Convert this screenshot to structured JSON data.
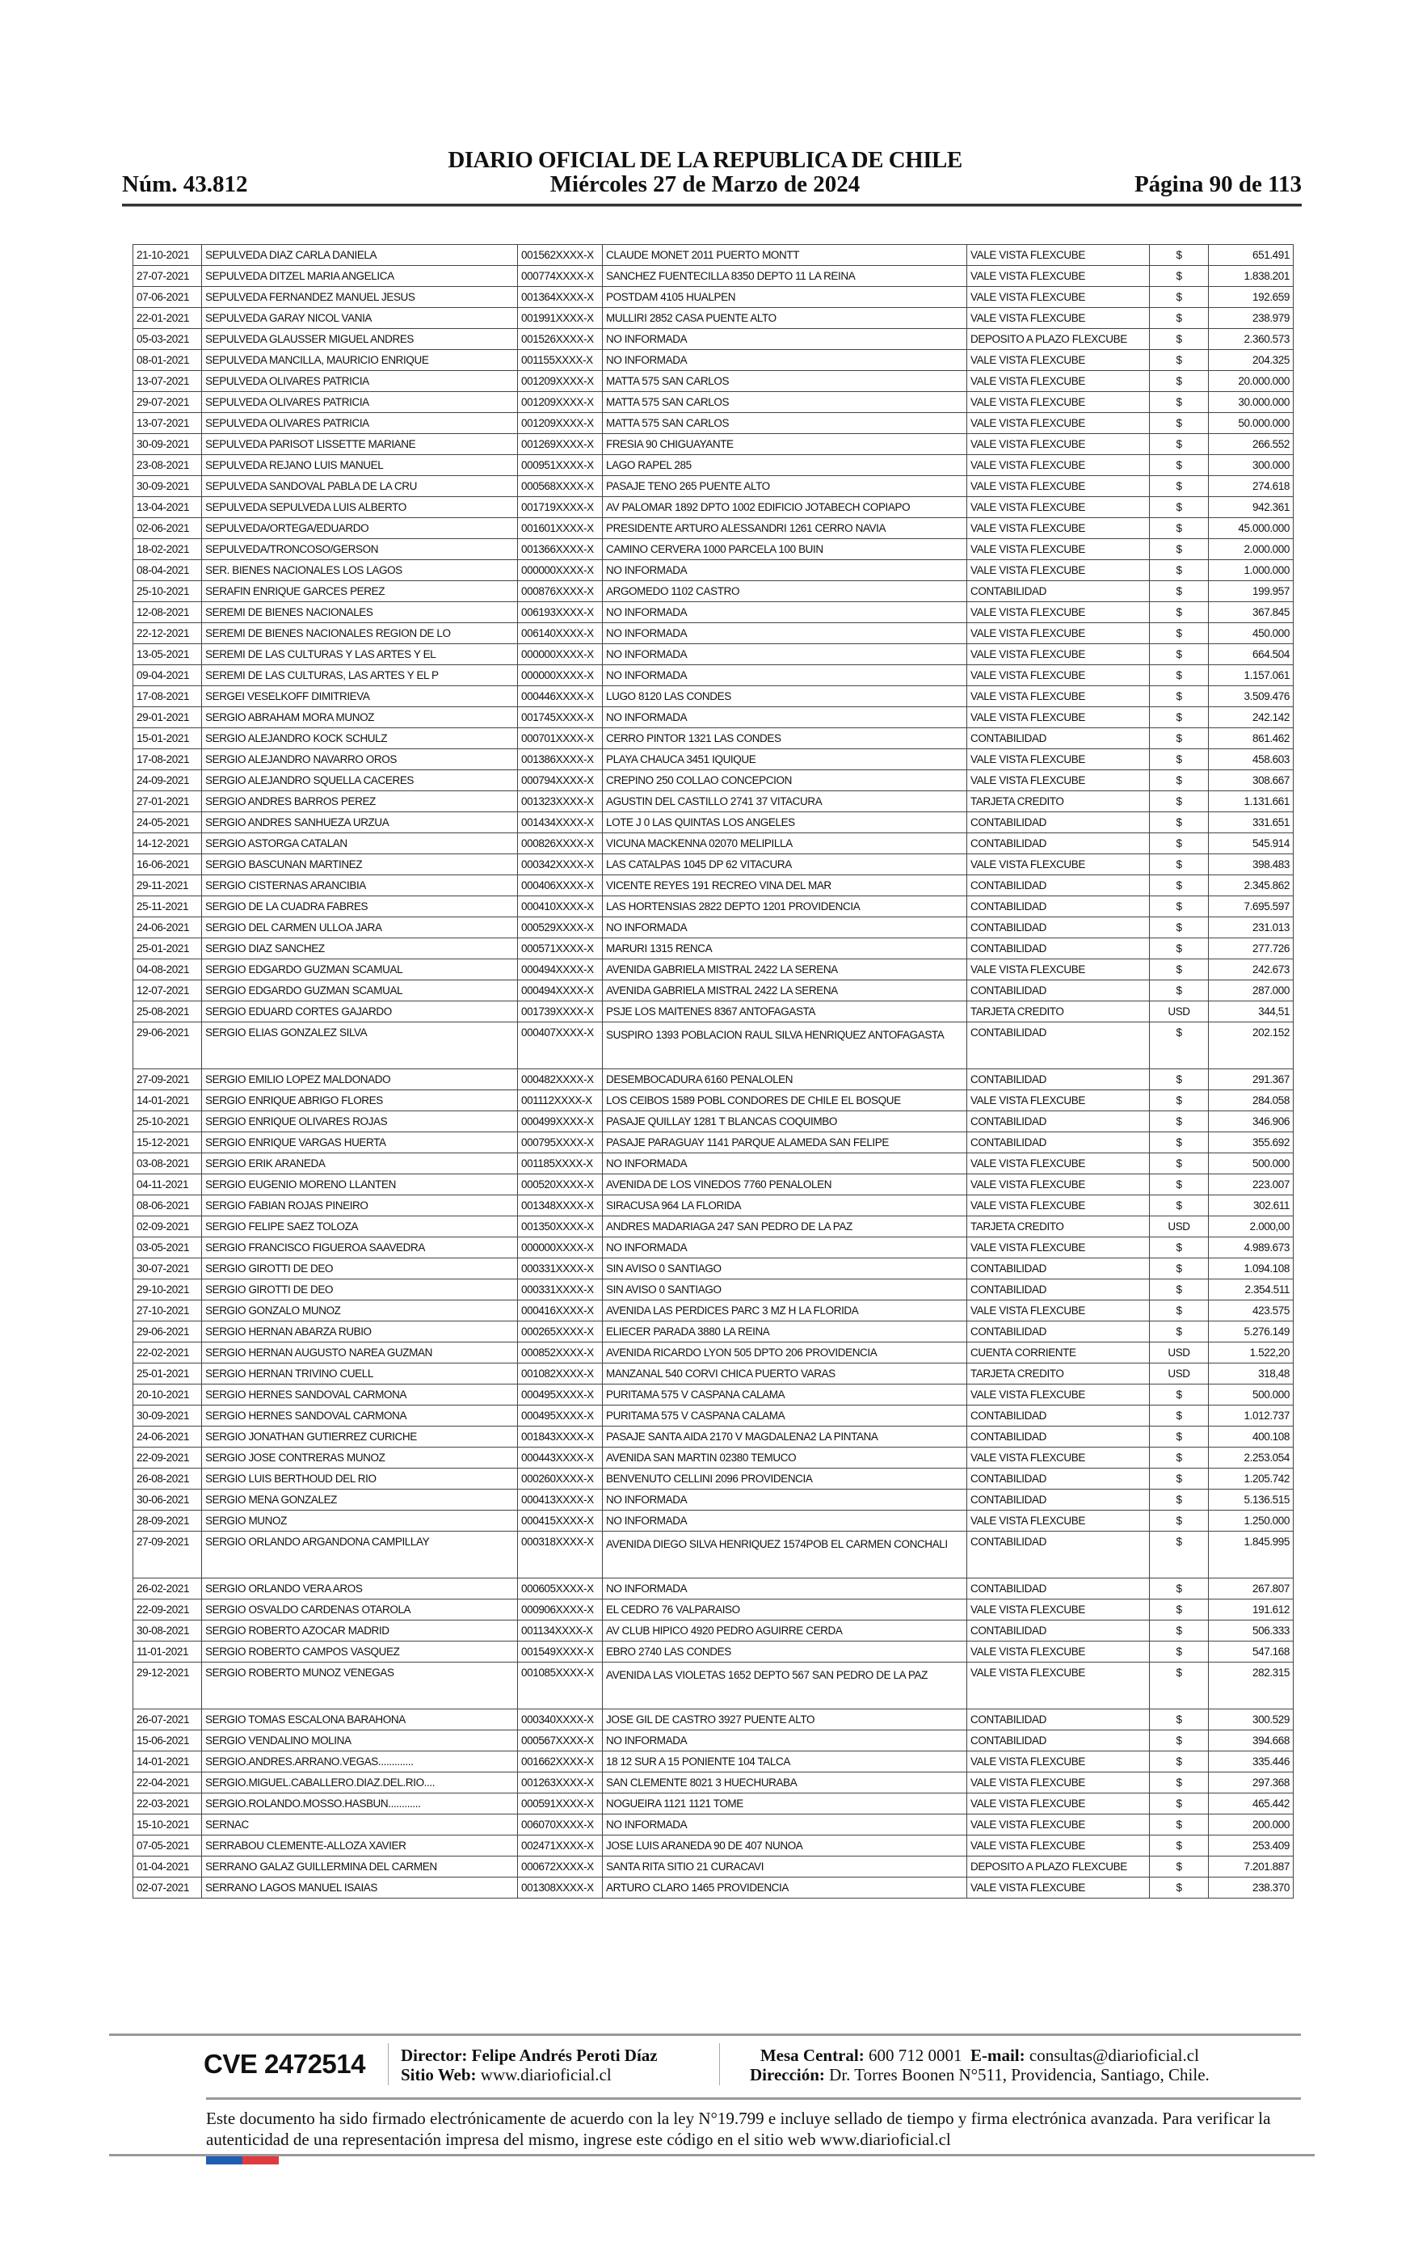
{
  "header": {
    "title": "DIARIO OFICIAL DE LA REPUBLICA DE CHILE",
    "number": "Núm. 43.812",
    "date": "Miércoles 27 de Marzo de 2024",
    "page": "Página 90 de 113"
  },
  "table": {
    "rows": [
      [
        "21-10-2021",
        "SEPULVEDA DIAZ CARLA DANIELA",
        "001562XXXX-X",
        "CLAUDE MONET 2011 PUERTO MONTT",
        "VALE VISTA FLEXCUBE",
        "$",
        "651.491"
      ],
      [
        "27-07-2021",
        "SEPULVEDA DITZEL MARIA ANGELICA",
        "000774XXXX-X",
        "SANCHEZ FUENTECILLA 8350 DEPTO 11 LA REINA",
        "VALE VISTA FLEXCUBE",
        "$",
        "1.838.201"
      ],
      [
        "07-06-2021",
        "SEPULVEDA FERNANDEZ MANUEL JESUS",
        "001364XXXX-X",
        "POSTDAM 4105 HUALPEN",
        "VALE VISTA FLEXCUBE",
        "$",
        "192.659"
      ],
      [
        "22-01-2021",
        "SEPULVEDA GARAY NICOL VANIA",
        "001991XXXX-X",
        "MULLIRI 2852 CASA PUENTE ALTO",
        "VALE VISTA FLEXCUBE",
        "$",
        "238.979"
      ],
      [
        "05-03-2021",
        "SEPULVEDA GLAUSSER MIGUEL ANDRES",
        "001526XXXX-X",
        "NO INFORMADA",
        "DEPOSITO A PLAZO FLEXCUBE",
        "$",
        "2.360.573"
      ],
      [
        "08-01-2021",
        "SEPULVEDA MANCILLA, MAURICIO ENRIQUE",
        "001155XXXX-X",
        "NO INFORMADA",
        "VALE VISTA FLEXCUBE",
        "$",
        "204.325"
      ],
      [
        "13-07-2021",
        "SEPULVEDA OLIVARES PATRICIA",
        "001209XXXX-X",
        "MATTA 575 SAN CARLOS",
        "VALE VISTA FLEXCUBE",
        "$",
        "20.000.000"
      ],
      [
        "29-07-2021",
        "SEPULVEDA OLIVARES PATRICIA",
        "001209XXXX-X",
        "MATTA 575 SAN CARLOS",
        "VALE VISTA FLEXCUBE",
        "$",
        "30.000.000"
      ],
      [
        "13-07-2021",
        "SEPULVEDA OLIVARES PATRICIA",
        "001209XXXX-X",
        "MATTA 575 SAN CARLOS",
        "VALE VISTA FLEXCUBE",
        "$",
        "50.000.000"
      ],
      [
        "30-09-2021",
        "SEPULVEDA PARISOT LISSETTE MARIANE",
        "001269XXXX-X",
        "FRESIA 90 CHIGUAYANTE",
        "VALE VISTA FLEXCUBE",
        "$",
        "266.552"
      ],
      [
        "23-08-2021",
        "SEPULVEDA REJANO LUIS MANUEL",
        "000951XXXX-X",
        "LAGO RAPEL 285",
        "VALE VISTA FLEXCUBE",
        "$",
        "300.000"
      ],
      [
        "30-09-2021",
        "SEPULVEDA SANDOVAL PABLA DE LA CRU",
        "000568XXXX-X",
        "PASAJE TENO 265 PUENTE ALTO",
        "VALE VISTA FLEXCUBE",
        "$",
        "274.618"
      ],
      [
        "13-04-2021",
        "SEPULVEDA SEPULVEDA LUIS ALBERTO",
        "001719XXXX-X",
        "AV PALOMAR 1892 DPTO 1002 EDIFICIO JOTABECH COPIAPO",
        "VALE VISTA FLEXCUBE",
        "$",
        "942.361"
      ],
      [
        "02-06-2021",
        "SEPULVEDA/ORTEGA/EDUARDO",
        "001601XXXX-X",
        "PRESIDENTE ARTURO ALESSANDRI 1261 CERRO NAVIA",
        "VALE VISTA FLEXCUBE",
        "$",
        "45.000.000"
      ],
      [
        "18-02-2021",
        "SEPULVEDA/TRONCOSO/GERSON",
        "001366XXXX-X",
        "CAMINO CERVERA 1000 PARCELA 100 BUIN",
        "VALE VISTA FLEXCUBE",
        "$",
        "2.000.000"
      ],
      [
        "08-04-2021",
        "SER. BIENES NACIONALES LOS LAGOS",
        "000000XXXX-X",
        "NO INFORMADA",
        "VALE VISTA FLEXCUBE",
        "$",
        "1.000.000"
      ],
      [
        "25-10-2021",
        "SERAFIN ENRIQUE GARCES PEREZ",
        "000876XXXX-X",
        "ARGOMEDO 1102 CASTRO",
        "CONTABILIDAD",
        "$",
        "199.957"
      ],
      [
        "12-08-2021",
        "SEREMI DE BIENES NACIONALES",
        "006193XXXX-X",
        "NO INFORMADA",
        "VALE VISTA FLEXCUBE",
        "$",
        "367.845"
      ],
      [
        "22-12-2021",
        "SEREMI DE BIENES NACIONALES REGION DE LO",
        "006140XXXX-X",
        "NO INFORMADA",
        "VALE VISTA FLEXCUBE",
        "$",
        "450.000"
      ],
      [
        "13-05-2021",
        "SEREMI DE LAS CULTURAS Y LAS ARTES Y EL",
        "000000XXXX-X",
        "NO INFORMADA",
        "VALE VISTA FLEXCUBE",
        "$",
        "664.504"
      ],
      [
        "09-04-2021",
        "SEREMI DE LAS CULTURAS, LAS ARTES Y EL P",
        "000000XXXX-X",
        "NO INFORMADA",
        "VALE VISTA FLEXCUBE",
        "$",
        "1.157.061"
      ],
      [
        "17-08-2021",
        "SERGEI VESELKOFF DIMITRIEVA",
        "000446XXXX-X",
        "LUGO 8120 LAS CONDES",
        "VALE VISTA FLEXCUBE",
        "$",
        "3.509.476"
      ],
      [
        "29-01-2021",
        "SERGIO ABRAHAM MORA MUNOZ",
        "001745XXXX-X",
        "NO INFORMADA",
        "VALE VISTA FLEXCUBE",
        "$",
        "242.142"
      ],
      [
        "15-01-2021",
        "SERGIO ALEJANDRO KOCK SCHULZ",
        "000701XXXX-X",
        "CERRO PINTOR 1321 LAS CONDES",
        "CONTABILIDAD",
        "$",
        "861.462"
      ],
      [
        "17-08-2021",
        "SERGIO ALEJANDRO NAVARRO OROS",
        "001386XXXX-X",
        "PLAYA CHAUCA 3451 IQUIQUE",
        "VALE VISTA FLEXCUBE",
        "$",
        "458.603"
      ],
      [
        "24-09-2021",
        "SERGIO ALEJANDRO SQUELLA CACERES",
        "000794XXXX-X",
        "CREPINO 250 COLLAO CONCEPCION",
        "VALE VISTA FLEXCUBE",
        "$",
        "308.667"
      ],
      [
        "27-01-2021",
        "SERGIO ANDRES BARROS PEREZ",
        "001323XXXX-X",
        "AGUSTIN DEL CASTILLO 2741 37 VITACURA",
        "TARJETA CREDITO",
        "$",
        "1.131.661"
      ],
      [
        "24-05-2021",
        "SERGIO ANDRES SANHUEZA URZUA",
        "001434XXXX-X",
        "LOTE J 0 LAS QUINTAS LOS ANGELES",
        "CONTABILIDAD",
        "$",
        "331.651"
      ],
      [
        "14-12-2021",
        "SERGIO ASTORGA CATALAN",
        "000826XXXX-X",
        "VICUNA MACKENNA 02070 MELIPILLA",
        "CONTABILIDAD",
        "$",
        "545.914"
      ],
      [
        "16-06-2021",
        "SERGIO BASCUNAN MARTINEZ",
        "000342XXXX-X",
        "LAS CATALPAS 1045 DP 62 VITACURA",
        "VALE VISTA FLEXCUBE",
        "$",
        "398.483"
      ],
      [
        "29-11-2021",
        "SERGIO CISTERNAS ARANCIBIA",
        "000406XXXX-X",
        "VICENTE REYES 191 RECREO VINA DEL MAR",
        "CONTABILIDAD",
        "$",
        "2.345.862"
      ],
      [
        "25-11-2021",
        "SERGIO DE LA CUADRA FABRES",
        "000410XXXX-X",
        "LAS HORTENSIAS 2822 DEPTO 1201 PROVIDENCIA",
        "CONTABILIDAD",
        "$",
        "7.695.597"
      ],
      [
        "24-06-2021",
        "SERGIO DEL CARMEN ULLOA JARA",
        "000529XXXX-X",
        "NO INFORMADA",
        "CONTABILIDAD",
        "$",
        "231.013"
      ],
      [
        "25-01-2021",
        "SERGIO DIAZ SANCHEZ",
        "000571XXXX-X",
        "MARURI 1315 RENCA",
        "CONTABILIDAD",
        "$",
        "277.726"
      ],
      [
        "04-08-2021",
        "SERGIO EDGARDO GUZMAN SCAMUAL",
        "000494XXXX-X",
        "AVENIDA GABRIELA MISTRAL 2422 LA SERENA",
        "VALE VISTA FLEXCUBE",
        "$",
        "242.673"
      ],
      [
        "12-07-2021",
        "SERGIO EDGARDO GUZMAN SCAMUAL",
        "000494XXXX-X",
        "AVENIDA GABRIELA MISTRAL 2422 LA SERENA",
        "CONTABILIDAD",
        "$",
        "287.000"
      ],
      [
        "25-08-2021",
        "SERGIO EDUARD CORTES GAJARDO",
        "001739XXXX-X",
        "PSJE LOS MAITENES 8367 ANTOFAGASTA",
        "TARJETA CREDITO",
        "USD",
        "344,51"
      ],
      [
        "29-06-2021",
        "SERGIO ELIAS GONZALEZ SILVA",
        "000407XXXX-X",
        "SUSPIRO 1393 POBLACION RAUL SILVA HENRIQUEZ ANTOFAGASTA",
        "CONTABILIDAD",
        "$",
        "202.152"
      ],
      [
        "27-09-2021",
        "SERGIO EMILIO LOPEZ MALDONADO",
        "000482XXXX-X",
        "DESEMBOCADURA 6160 PENALOLEN",
        "CONTABILIDAD",
        "$",
        "291.367"
      ],
      [
        "14-01-2021",
        "SERGIO ENRIQUE ABRIGO FLORES",
        "001112XXXX-X",
        "LOS CEIBOS 1589 POBL CONDORES DE CHILE EL BOSQUE",
        "VALE VISTA FLEXCUBE",
        "$",
        "284.058"
      ],
      [
        "25-10-2021",
        "SERGIO ENRIQUE OLIVARES ROJAS",
        "000499XXXX-X",
        "PASAJE QUILLAY 1281 T BLANCAS COQUIMBO",
        "CONTABILIDAD",
        "$",
        "346.906"
      ],
      [
        "15-12-2021",
        "SERGIO ENRIQUE VARGAS HUERTA",
        "000795XXXX-X",
        "PASAJE PARAGUAY 1141 PARQUE ALAMEDA SAN FELIPE",
        "CONTABILIDAD",
        "$",
        "355.692"
      ],
      [
        "03-08-2021",
        "SERGIO ERIK ARANEDA",
        "001185XXXX-X",
        "NO INFORMADA",
        "VALE VISTA FLEXCUBE",
        "$",
        "500.000"
      ],
      [
        "04-11-2021",
        "SERGIO EUGENIO MORENO LLANTEN",
        "000520XXXX-X",
        "AVENIDA DE LOS VINEDOS 7760 PENALOLEN",
        "VALE VISTA FLEXCUBE",
        "$",
        "223.007"
      ],
      [
        "08-06-2021",
        "SERGIO FABIAN ROJAS PINEIRO",
        "001348XXXX-X",
        "SIRACUSA 964 LA FLORIDA",
        "VALE VISTA FLEXCUBE",
        "$",
        "302.611"
      ],
      [
        "02-09-2021",
        "SERGIO FELIPE SAEZ TOLOZA",
        "001350XXXX-X",
        "ANDRES MADARIAGA 247 SAN PEDRO DE LA PAZ",
        "TARJETA CREDITO",
        "USD",
        "2.000,00"
      ],
      [
        "03-05-2021",
        "SERGIO FRANCISCO FIGUEROA SAAVEDRA",
        "000000XXXX-X",
        "NO INFORMADA",
        "VALE VISTA FLEXCUBE",
        "$",
        "4.989.673"
      ],
      [
        "30-07-2021",
        "SERGIO GIROTTI DE DEO",
        "000331XXXX-X",
        "SIN AVISO 0 SANTIAGO",
        "CONTABILIDAD",
        "$",
        "1.094.108"
      ],
      [
        "29-10-2021",
        "SERGIO GIROTTI DE DEO",
        "000331XXXX-X",
        "SIN AVISO 0 SANTIAGO",
        "CONTABILIDAD",
        "$",
        "2.354.511"
      ],
      [
        "27-10-2021",
        "SERGIO GONZALO MUNOZ",
        "000416XXXX-X",
        "AVENIDA LAS PERDICES PARC 3 MZ H LA FLORIDA",
        "VALE VISTA FLEXCUBE",
        "$",
        "423.575"
      ],
      [
        "29-06-2021",
        "SERGIO HERNAN ABARZA RUBIO",
        "000265XXXX-X",
        "ELIECER PARADA 3880 LA REINA",
        "CONTABILIDAD",
        "$",
        "5.276.149"
      ],
      [
        "22-02-2021",
        "SERGIO HERNAN AUGUSTO NAREA GUZMAN",
        "000852XXXX-X",
        "AVENIDA RICARDO LYON 505 DPTO 206 PROVIDENCIA",
        "CUENTA CORRIENTE",
        "USD",
        "1.522,20"
      ],
      [
        "25-01-2021",
        "SERGIO HERNAN TRIVINO CUELL",
        "001082XXXX-X",
        "MANZANAL 540 CORVI CHICA PUERTO VARAS",
        "TARJETA CREDITO",
        "USD",
        "318,48"
      ],
      [
        "20-10-2021",
        "SERGIO HERNES SANDOVAL CARMONA",
        "000495XXXX-X",
        "PURITAMA 575 V CASPANA CALAMA",
        "VALE VISTA FLEXCUBE",
        "$",
        "500.000"
      ],
      [
        "30-09-2021",
        "SERGIO HERNES SANDOVAL CARMONA",
        "000495XXXX-X",
        "PURITAMA 575 V CASPANA CALAMA",
        "CONTABILIDAD",
        "$",
        "1.012.737"
      ],
      [
        "24-06-2021",
        "SERGIO JONATHAN GUTIERREZ CURICHE",
        "001843XXXX-X",
        "PASAJE SANTA AIDA 2170 V MAGDALENA2 LA PINTANA",
        "CONTABILIDAD",
        "$",
        "400.108"
      ],
      [
        "22-09-2021",
        "SERGIO JOSE CONTRERAS MUNOZ",
        "000443XXXX-X",
        "AVENIDA SAN MARTIN 02380 TEMUCO",
        "VALE VISTA FLEXCUBE",
        "$",
        "2.253.054"
      ],
      [
        "26-08-2021",
        "SERGIO LUIS BERTHOUD DEL RIO",
        "000260XXXX-X",
        "BENVENUTO CELLINI 2096 PROVIDENCIA",
        "CONTABILIDAD",
        "$",
        "1.205.742"
      ],
      [
        "30-06-2021",
        "SERGIO MENA GONZALEZ",
        "000413XXXX-X",
        "NO INFORMADA",
        "CONTABILIDAD",
        "$",
        "5.136.515"
      ],
      [
        "28-09-2021",
        "SERGIO MUNOZ",
        "000415XXXX-X",
        "NO INFORMADA",
        "VALE VISTA FLEXCUBE",
        "$",
        "1.250.000"
      ],
      [
        "27-09-2021",
        "SERGIO ORLANDO ARGANDONA CAMPILLAY",
        "000318XXXX-X",
        "AVENIDA DIEGO SILVA HENRIQUEZ 1574POB EL CARMEN CONCHALI",
        "CONTABILIDAD",
        "$",
        "1.845.995"
      ],
      [
        "26-02-2021",
        "SERGIO ORLANDO VERA AROS",
        "000605XXXX-X",
        "NO INFORMADA",
        "CONTABILIDAD",
        "$",
        "267.807"
      ],
      [
        "22-09-2021",
        "SERGIO OSVALDO CARDENAS OTAROLA",
        "000906XXXX-X",
        "EL CEDRO 76 VALPARAISO",
        "VALE VISTA FLEXCUBE",
        "$",
        "191.612"
      ],
      [
        "30-08-2021",
        "SERGIO ROBERTO AZOCAR MADRID",
        "001134XXXX-X",
        "AV CLUB HIPICO 4920 PEDRO AGUIRRE CERDA",
        "CONTABILIDAD",
        "$",
        "506.333"
      ],
      [
        "11-01-2021",
        "SERGIO ROBERTO CAMPOS VASQUEZ",
        "001549XXXX-X",
        "EBRO 2740 LAS CONDES",
        "VALE VISTA FLEXCUBE",
        "$",
        "547.168"
      ],
      [
        "29-12-2021",
        "SERGIO ROBERTO MUNOZ VENEGAS",
        "001085XXXX-X",
        "AVENIDA LAS VIOLETAS 1652 DEPTO 567 SAN PEDRO DE LA PAZ",
        "VALE VISTA FLEXCUBE",
        "$",
        "282.315"
      ],
      [
        "26-07-2021",
        "SERGIO TOMAS ESCALONA BARAHONA",
        "000340XXXX-X",
        "JOSE GIL DE CASTRO 3927 PUENTE ALTO",
        "CONTABILIDAD",
        "$",
        "300.529"
      ],
      [
        "15-06-2021",
        "SERGIO VENDALINO MOLINA",
        "000567XXXX-X",
        "NO INFORMADA",
        "CONTABILIDAD",
        "$",
        "394.668"
      ],
      [
        "14-01-2021",
        "SERGIO.ANDRES.ARRANO.VEGAS.............",
        "001662XXXX-X",
        "18 12 SUR A 15 PONIENTE 104 TALCA",
        "VALE VISTA FLEXCUBE",
        "$",
        "335.446"
      ],
      [
        "22-04-2021",
        "SERGIO.MIGUEL.CABALLERO.DIAZ.DEL.RIO....",
        "001263XXXX-X",
        "SAN CLEMENTE 8021 3 HUECHURABA",
        "VALE VISTA FLEXCUBE",
        "$",
        "297.368"
      ],
      [
        "22-03-2021",
        "SERGIO.ROLANDO.MOSSO.HASBUN............",
        "000591XXXX-X",
        "NOGUEIRA 1121 1121 TOME",
        "VALE VISTA FLEXCUBE",
        "$",
        "465.442"
      ],
      [
        "15-10-2021",
        "SERNAC",
        "006070XXXX-X",
        "NO INFORMADA",
        "VALE VISTA FLEXCUBE",
        "$",
        "200.000"
      ],
      [
        "07-05-2021",
        "SERRABOU CLEMENTE-ALLOZA XAVIER",
        "002471XXXX-X",
        "JOSE LUIS ARANEDA 90 DE 407 NUNOA",
        "VALE VISTA FLEXCUBE",
        "$",
        "253.409"
      ],
      [
        "01-04-2021",
        "SERRANO GALAZ GUILLERMINA DEL CARMEN",
        "000672XXXX-X",
        "SANTA RITA SITIO 21 CURACAVI",
        "DEPOSITO A PLAZO FLEXCUBE",
        "$",
        "7.201.887"
      ],
      [
        "02-07-2021",
        "SERRANO LAGOS MANUEL ISAIAS",
        "001308XXXX-X",
        "ARTURO CLARO 1465 PROVIDENCIA",
        "VALE VISTA FLEXCUBE",
        "$",
        "238.370"
      ]
    ]
  },
  "footer": {
    "cve": "CVE 2472514",
    "director_label": "Director:",
    "director": "Felipe Andrés Peroti Díaz",
    "web_label": "Sitio Web:",
    "web": "www.diarioficial.cl",
    "mesa_label": "Mesa Central:",
    "mesa": "600 712 0001",
    "email_label": "E-mail:",
    "email": "consultas@diarioficial.cl",
    "address_label": "Dirección:",
    "address": "Dr. Torres Boonen N°511, Providencia, Santiago, Chile.",
    "legal": "Este documento ha sido firmado electrónicamente de acuerdo con la ley N°19.799 e incluye sellado de tiempo y firma electrónica avanzada. Para verificar la autenticidad de una representación impresa del mismo, ingrese este código en el sitio web www.diarioficial.cl",
    "flag_colors": [
      "#1d5fb0",
      "#e03a3e"
    ]
  }
}
